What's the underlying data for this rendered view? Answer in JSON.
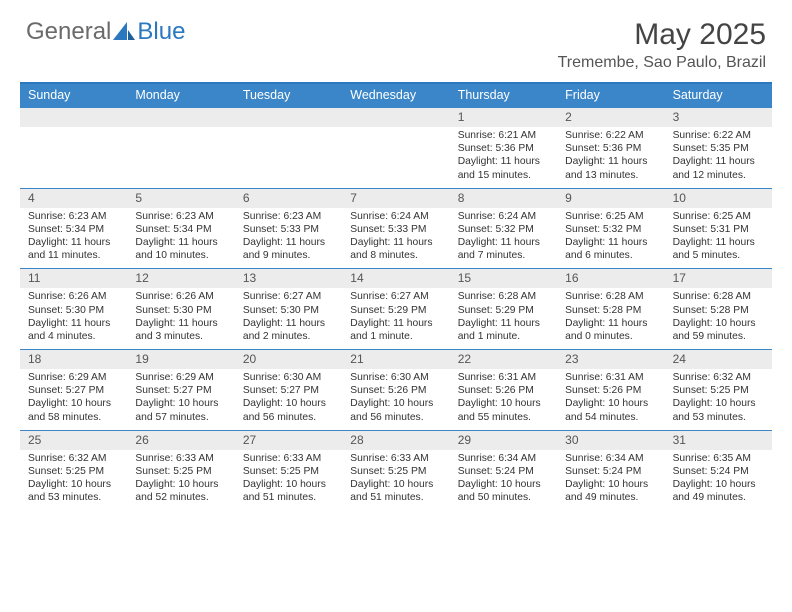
{
  "brand": {
    "part1": "General",
    "part2": "Blue"
  },
  "title": "May 2025",
  "location": "Tremembe, Sao Paulo, Brazil",
  "colors": {
    "header_bg": "#3b86c8",
    "header_text": "#ffffff",
    "rule": "#3b86c8",
    "num_row_bg": "#ececec",
    "body_text": "#333333",
    "brand_gray": "#6a6a6a",
    "brand_blue": "#2b77c0"
  },
  "day_names": [
    "Sunday",
    "Monday",
    "Tuesday",
    "Wednesday",
    "Thursday",
    "Friday",
    "Saturday"
  ],
  "weeks": [
    {
      "nums": [
        "",
        "",
        "",
        "",
        "1",
        "2",
        "3"
      ],
      "cells": [
        null,
        null,
        null,
        null,
        {
          "sr": "6:21 AM",
          "ss": "5:36 PM",
          "dl": "11 hours and 15 minutes."
        },
        {
          "sr": "6:22 AM",
          "ss": "5:36 PM",
          "dl": "11 hours and 13 minutes."
        },
        {
          "sr": "6:22 AM",
          "ss": "5:35 PM",
          "dl": "11 hours and 12 minutes."
        }
      ]
    },
    {
      "nums": [
        "4",
        "5",
        "6",
        "7",
        "8",
        "9",
        "10"
      ],
      "cells": [
        {
          "sr": "6:23 AM",
          "ss": "5:34 PM",
          "dl": "11 hours and 11 minutes."
        },
        {
          "sr": "6:23 AM",
          "ss": "5:34 PM",
          "dl": "11 hours and 10 minutes."
        },
        {
          "sr": "6:23 AM",
          "ss": "5:33 PM",
          "dl": "11 hours and 9 minutes."
        },
        {
          "sr": "6:24 AM",
          "ss": "5:33 PM",
          "dl": "11 hours and 8 minutes."
        },
        {
          "sr": "6:24 AM",
          "ss": "5:32 PM",
          "dl": "11 hours and 7 minutes."
        },
        {
          "sr": "6:25 AM",
          "ss": "5:32 PM",
          "dl": "11 hours and 6 minutes."
        },
        {
          "sr": "6:25 AM",
          "ss": "5:31 PM",
          "dl": "11 hours and 5 minutes."
        }
      ]
    },
    {
      "nums": [
        "11",
        "12",
        "13",
        "14",
        "15",
        "16",
        "17"
      ],
      "cells": [
        {
          "sr": "6:26 AM",
          "ss": "5:30 PM",
          "dl": "11 hours and 4 minutes."
        },
        {
          "sr": "6:26 AM",
          "ss": "5:30 PM",
          "dl": "11 hours and 3 minutes."
        },
        {
          "sr": "6:27 AM",
          "ss": "5:30 PM",
          "dl": "11 hours and 2 minutes."
        },
        {
          "sr": "6:27 AM",
          "ss": "5:29 PM",
          "dl": "11 hours and 1 minute."
        },
        {
          "sr": "6:28 AM",
          "ss": "5:29 PM",
          "dl": "11 hours and 1 minute."
        },
        {
          "sr": "6:28 AM",
          "ss": "5:28 PM",
          "dl": "11 hours and 0 minutes."
        },
        {
          "sr": "6:28 AM",
          "ss": "5:28 PM",
          "dl": "10 hours and 59 minutes."
        }
      ]
    },
    {
      "nums": [
        "18",
        "19",
        "20",
        "21",
        "22",
        "23",
        "24"
      ],
      "cells": [
        {
          "sr": "6:29 AM",
          "ss": "5:27 PM",
          "dl": "10 hours and 58 minutes."
        },
        {
          "sr": "6:29 AM",
          "ss": "5:27 PM",
          "dl": "10 hours and 57 minutes."
        },
        {
          "sr": "6:30 AM",
          "ss": "5:27 PM",
          "dl": "10 hours and 56 minutes."
        },
        {
          "sr": "6:30 AM",
          "ss": "5:26 PM",
          "dl": "10 hours and 56 minutes."
        },
        {
          "sr": "6:31 AM",
          "ss": "5:26 PM",
          "dl": "10 hours and 55 minutes."
        },
        {
          "sr": "6:31 AM",
          "ss": "5:26 PM",
          "dl": "10 hours and 54 minutes."
        },
        {
          "sr": "6:32 AM",
          "ss": "5:25 PM",
          "dl": "10 hours and 53 minutes."
        }
      ]
    },
    {
      "nums": [
        "25",
        "26",
        "27",
        "28",
        "29",
        "30",
        "31"
      ],
      "cells": [
        {
          "sr": "6:32 AM",
          "ss": "5:25 PM",
          "dl": "10 hours and 53 minutes."
        },
        {
          "sr": "6:33 AM",
          "ss": "5:25 PM",
          "dl": "10 hours and 52 minutes."
        },
        {
          "sr": "6:33 AM",
          "ss": "5:25 PM",
          "dl": "10 hours and 51 minutes."
        },
        {
          "sr": "6:33 AM",
          "ss": "5:25 PM",
          "dl": "10 hours and 51 minutes."
        },
        {
          "sr": "6:34 AM",
          "ss": "5:24 PM",
          "dl": "10 hours and 50 minutes."
        },
        {
          "sr": "6:34 AM",
          "ss": "5:24 PM",
          "dl": "10 hours and 49 minutes."
        },
        {
          "sr": "6:35 AM",
          "ss": "5:24 PM",
          "dl": "10 hours and 49 minutes."
        }
      ]
    }
  ],
  "labels": {
    "sunrise": "Sunrise: ",
    "sunset": "Sunset: ",
    "daylight": "Daylight: "
  }
}
